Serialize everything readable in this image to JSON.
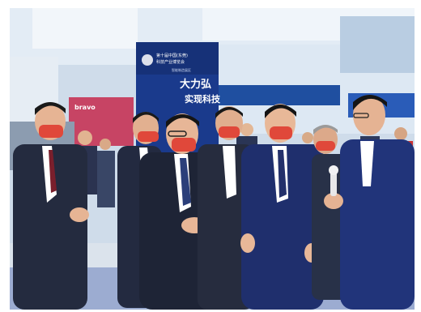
{
  "scene": {
    "description_free": true,
    "booth_sign": {
      "line_main_1": "大力弘",
      "line_main_2": "实现科技",
      "line_small": "第十届中国(东莞)",
      "line_small_2": "科技产业博览会",
      "line_small_3": "智能制造展区"
    },
    "banner_left": {
      "text": "bravo"
    },
    "colors": {
      "ceiling": "#d9e6f2",
      "booth_blue": "#1a3a8c",
      "floor": "#dfe6ee",
      "suit_dark": "#1f2a44",
      "suit_navy": "#1e2f6b",
      "mask_red": "#e0483a",
      "skin": "#e8b594"
    }
  }
}
